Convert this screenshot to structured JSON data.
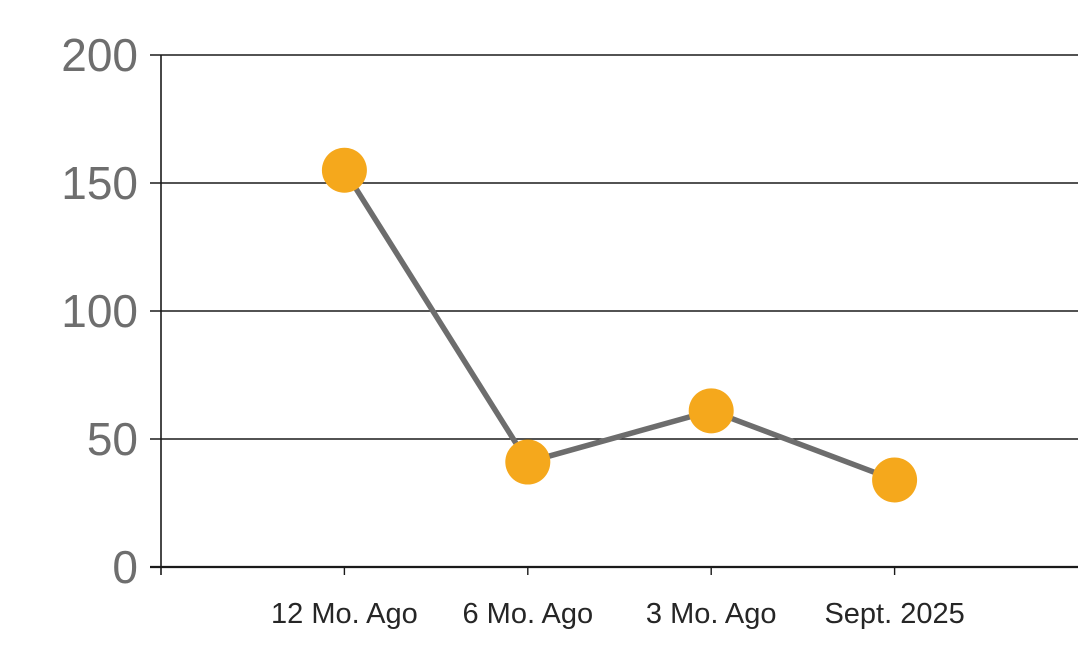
{
  "chart_data": {
    "type": "line",
    "title": "",
    "xlabel": "",
    "ylabel": "",
    "categories": [
      "12 Mo. Ago",
      "6 Mo. Ago",
      "3 Mo. Ago",
      "Sept. 2025"
    ],
    "values": [
      155,
      41,
      61,
      34
    ],
    "ylim": [
      0,
      200
    ],
    "yticks": [
      0,
      50,
      100,
      150,
      200
    ],
    "grid": true,
    "legend": false,
    "colors": {
      "marker": "#F5A81C",
      "line": "#6D6D6D",
      "axis": "#1A1A1A",
      "y_tick_label": "#6E6E6E",
      "x_tick_label": "#262626",
      "background": "#FFFFFF"
    }
  }
}
